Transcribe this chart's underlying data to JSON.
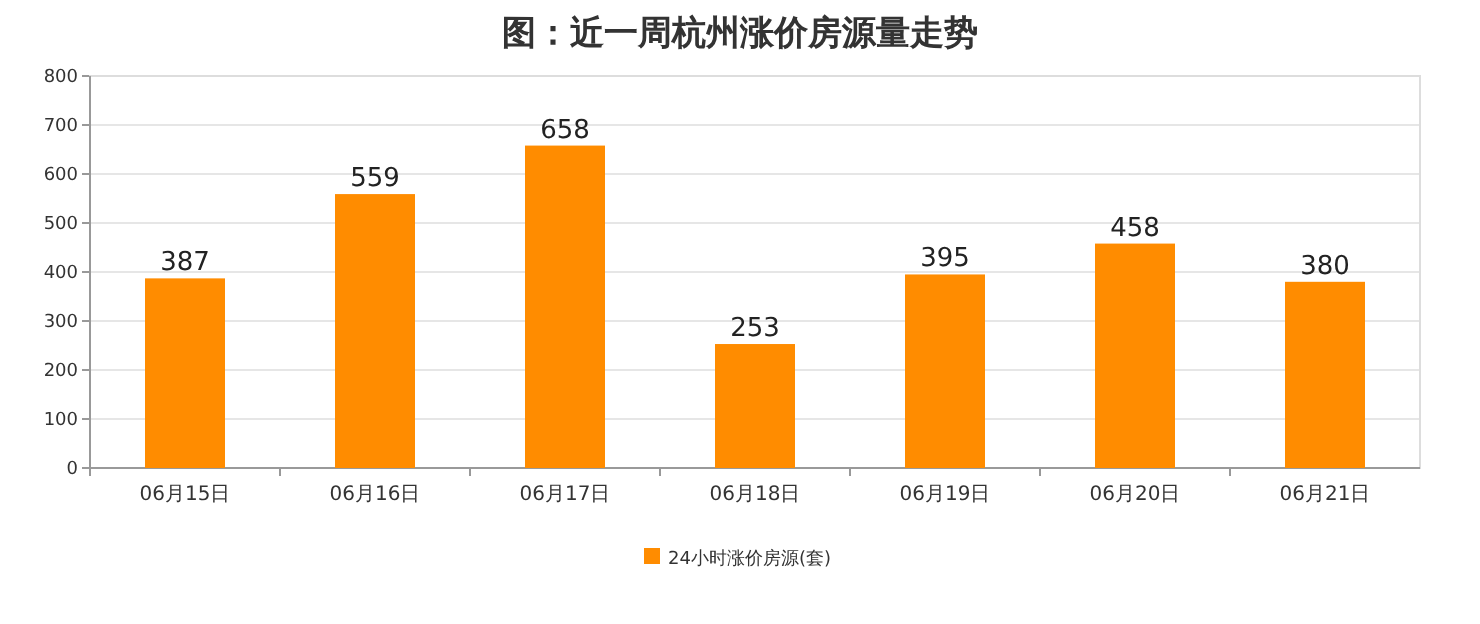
{
  "chart_data": {
    "type": "bar",
    "title": "图：近一周杭州涨价房源量走势",
    "categories": [
      "06月15日",
      "06月16日",
      "06月17日",
      "06月18日",
      "06月19日",
      "06月20日",
      "06月21日"
    ],
    "series": [
      {
        "name": "24小时涨价房源(套)",
        "color": "#ff8c00",
        "values": [
          387,
          559,
          658,
          253,
          395,
          458,
          380
        ]
      }
    ],
    "ylim": [
      0,
      800
    ],
    "yticks": [
      0,
      100,
      200,
      300,
      400,
      500,
      600,
      700,
      800
    ],
    "grid": "y",
    "legend": "bottom",
    "data_labels": true
  }
}
